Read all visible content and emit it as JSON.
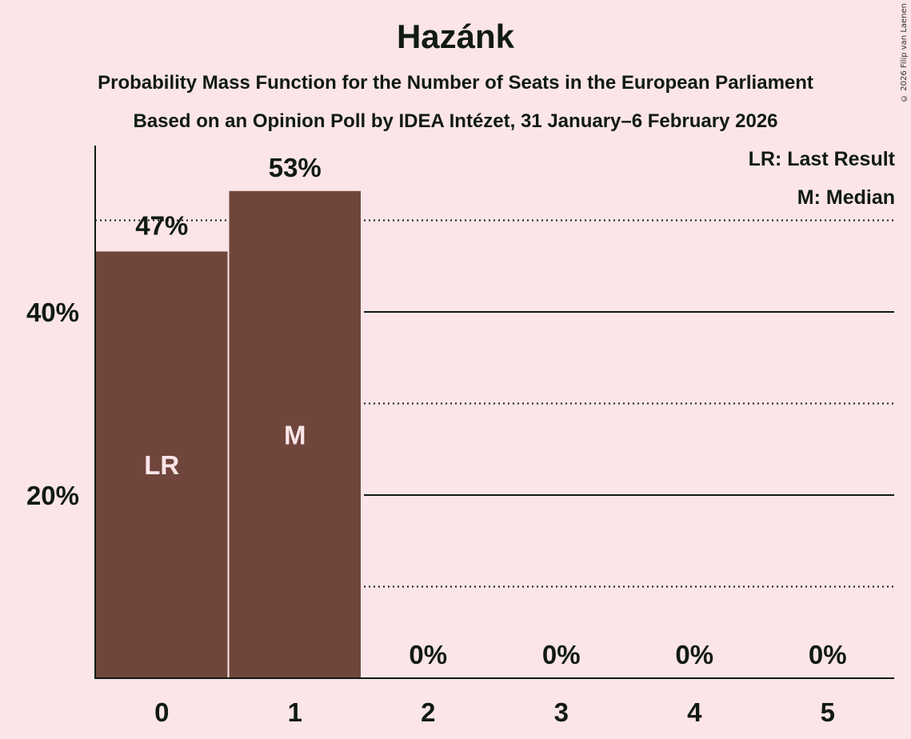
{
  "header": {
    "title": "Hazánk",
    "subtitle": "Probability Mass Function for the Number of Seats in the European Parliament",
    "poll_line": "Based on an Opinion Poll by IDEA Intézet, 31 January–6 February 2026",
    "copyright": "© 2026 Filip van Laenen"
  },
  "legend": {
    "lr": "LR: Last Result",
    "m": "M: Median"
  },
  "colors": {
    "background": "#fbe5e8",
    "bar": "#70463c",
    "text": "#111a14",
    "bar_label": "#fbe5e8"
  },
  "chart_data": {
    "type": "bar",
    "title": "Hazánk",
    "subtitle": "Probability Mass Function for the Number of Seats in the European Parliament",
    "caption": "Based on an Opinion Poll by IDEA Intézet, 31 January–6 February 2026",
    "xlabel": "",
    "ylabel": "",
    "categories": [
      "0",
      "1",
      "2",
      "3",
      "4",
      "5"
    ],
    "values": [
      46.6,
      53.2,
      0,
      0,
      0,
      0
    ],
    "value_labels": [
      "47%",
      "53%",
      "0%",
      "0%",
      "0%",
      "0%"
    ],
    "bar_annotations": {
      "0": "LR",
      "1": "M"
    },
    "yticks": [
      {
        "value": 20,
        "label": "20%"
      },
      {
        "value": 40,
        "label": "40%"
      }
    ],
    "gridlines": {
      "solid": [
        20,
        40
      ],
      "dotted": [
        10,
        30,
        50
      ]
    },
    "ylim": [
      0,
      58
    ],
    "legend": [
      "LR: Last Result",
      "M: Median"
    ],
    "legend_position": "top-right"
  }
}
